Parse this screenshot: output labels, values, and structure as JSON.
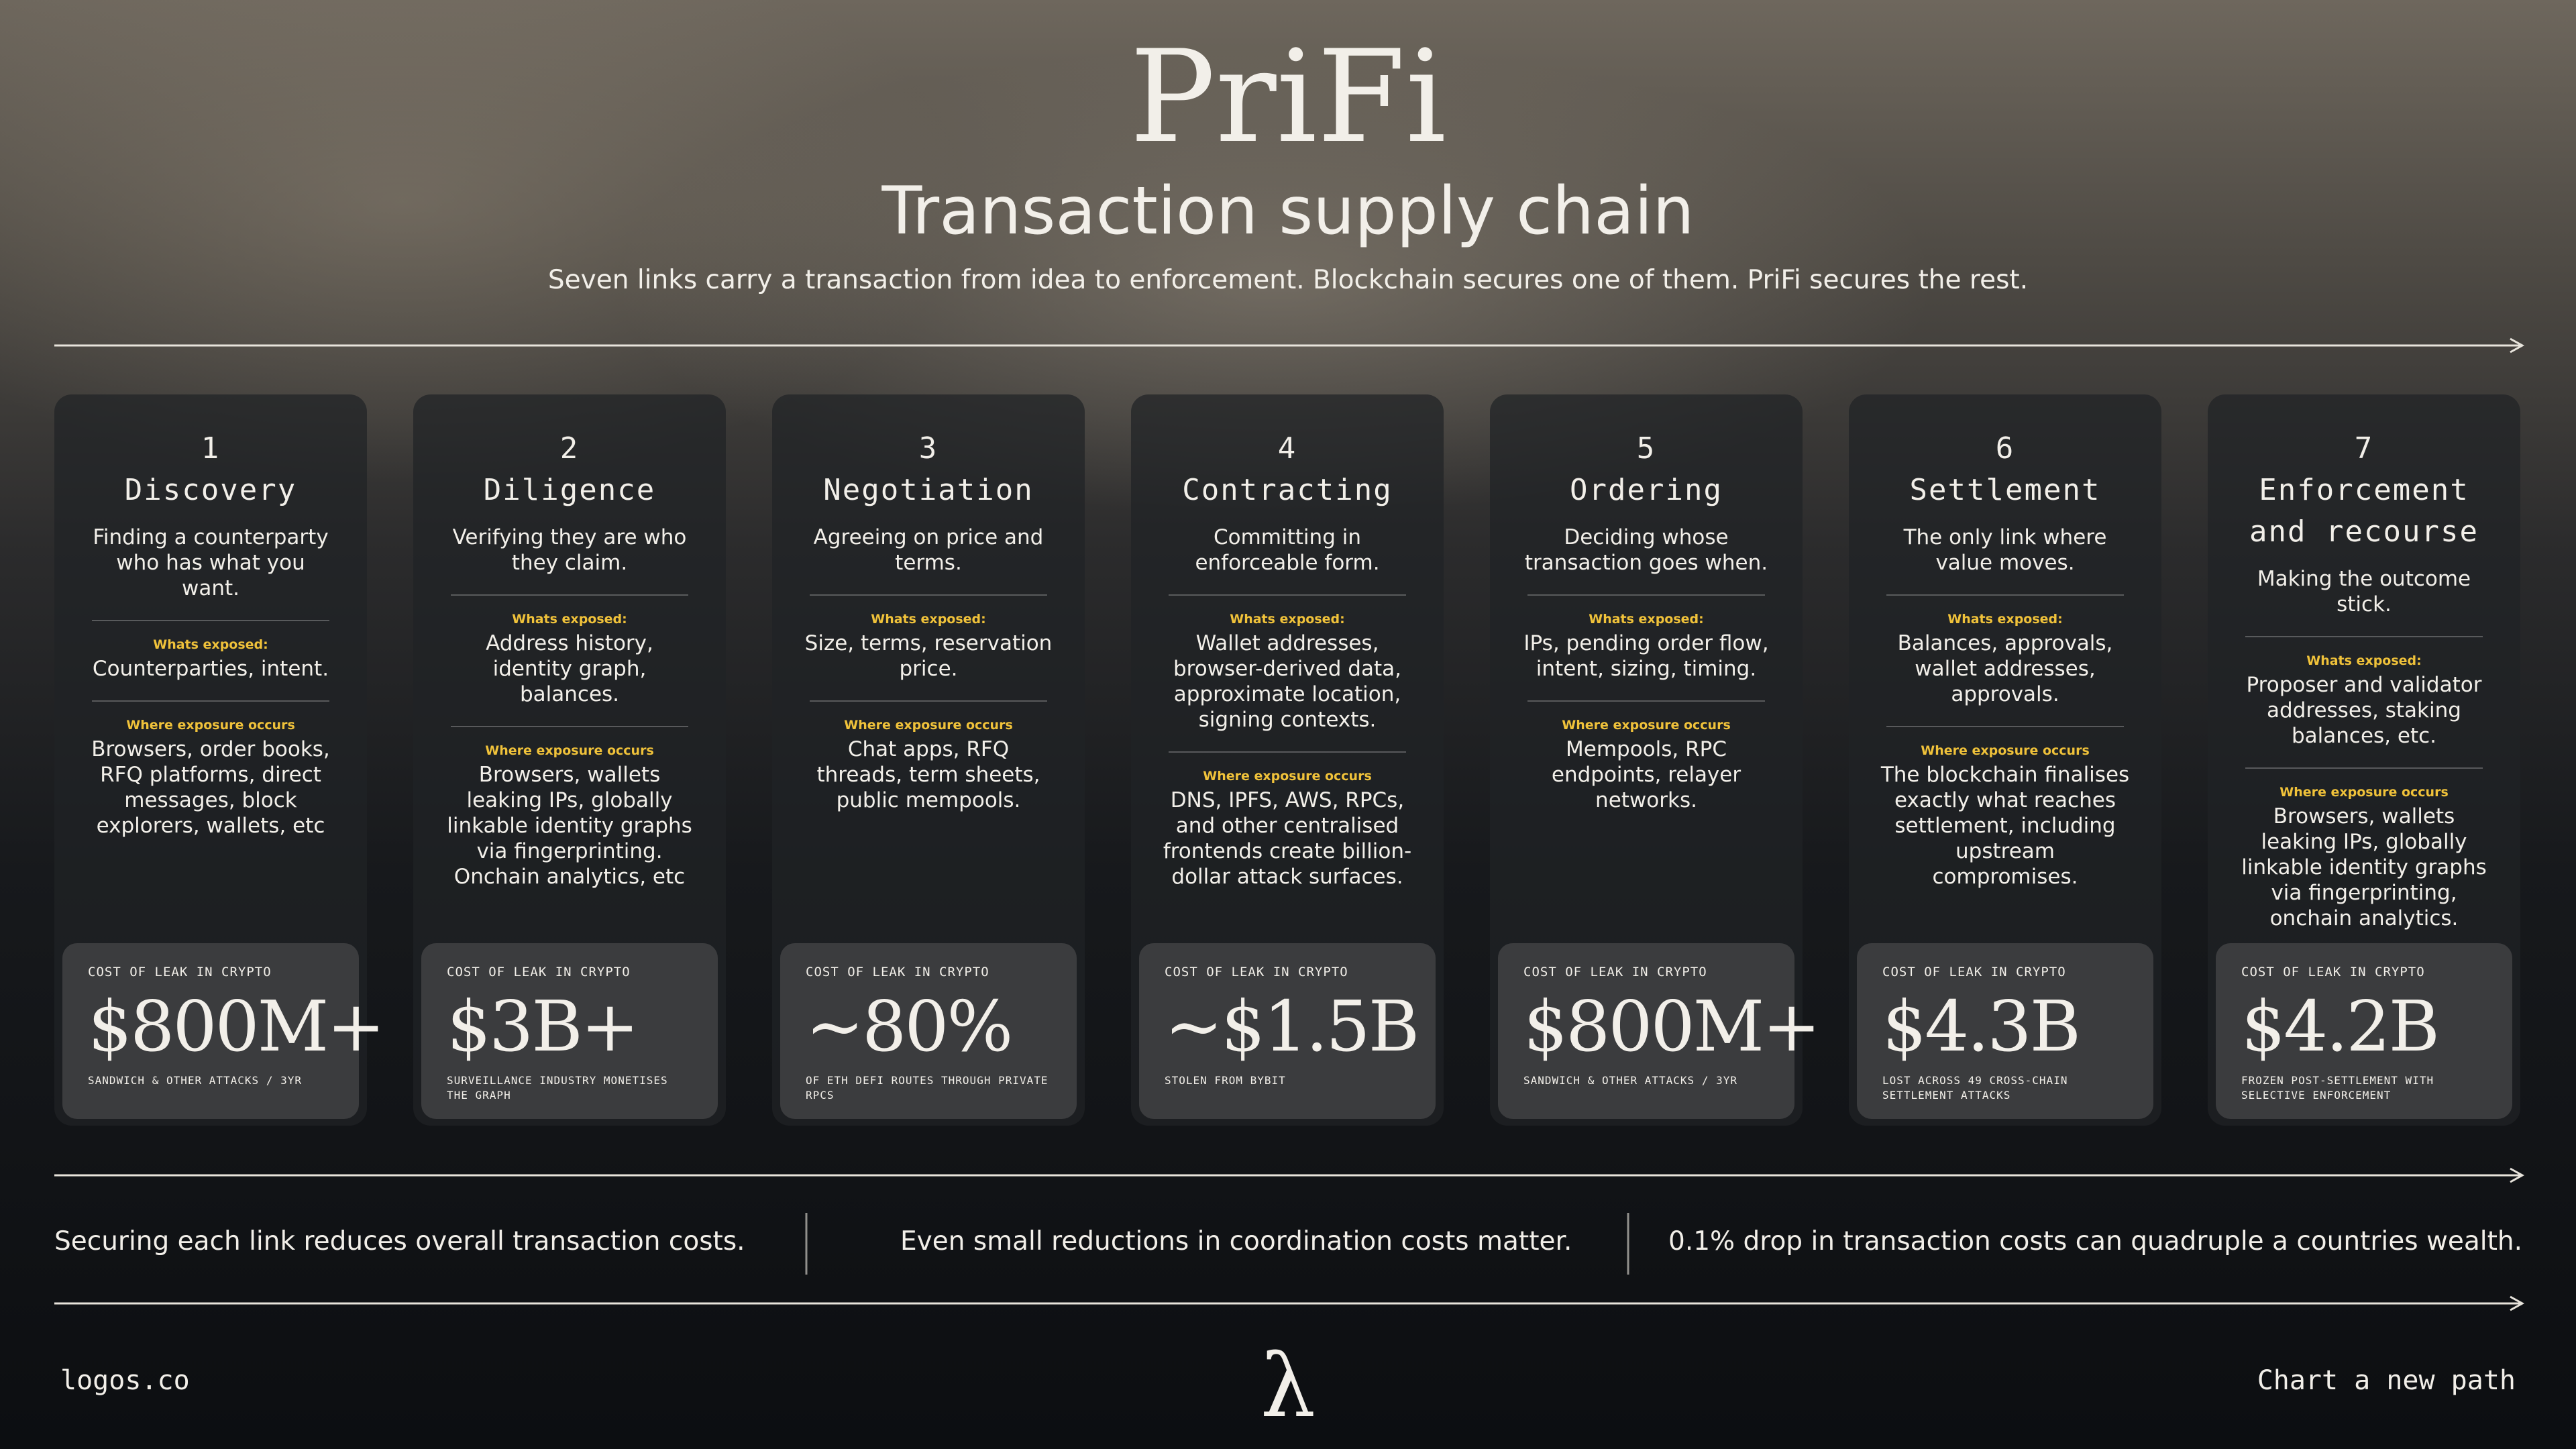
{
  "header": {
    "title": "PriFi",
    "heading": "Transaction supply chain",
    "subtitle": "Seven links carry a transaction from idea to enforcement. Blockchain secures one of them. PriFi secures the rest."
  },
  "cards": [
    {
      "number": "1",
      "title": "Discovery",
      "description": "Finding a counterparty who has what you want.",
      "exposed_label": "Whats exposed:",
      "exposed": "Counterparties, intent.",
      "occurs_label": "Where exposure occurs",
      "occurs": "Browsers, order books, RFQ platforms, direct messages, block explorers, wallets, etc",
      "cost_label": "COST OF LEAK IN CRYPTO",
      "cost": "$800M+",
      "cost_note": "SANDWICH & OTHER ATTACKS / 3YR"
    },
    {
      "number": "2",
      "title": "Diligence",
      "description": "Verifying they are who they claim.",
      "exposed_label": "Whats exposed:",
      "exposed": "Address history, identity graph, balances.",
      "occurs_label": "Where exposure occurs",
      "occurs": "Browsers, wallets leaking IPs, globally linkable identity graphs via fingerprinting. Onchain analytics, etc",
      "cost_label": "COST OF LEAK IN CRYPTO",
      "cost": "$3B+",
      "cost_note": "SURVEILLANCE INDUSTRY MONETISES THE GRAPH"
    },
    {
      "number": "3",
      "title": "Negotiation",
      "description": "Agreeing on price and terms.",
      "exposed_label": "Whats exposed:",
      "exposed": "Size, terms, reservation price.",
      "occurs_label": "Where exposure occurs",
      "occurs": "Chat apps, RFQ threads, term sheets, public mempools.",
      "cost_label": "COST OF LEAK IN CRYPTO",
      "cost": "~80%",
      "cost_note": "OF ETH DEFI ROUTES THROUGH PRIVATE RPCS"
    },
    {
      "number": "4",
      "title": "Contracting",
      "description": "Committing in enforceable form.",
      "exposed_label": "Whats exposed:",
      "exposed": "Wallet addresses, browser-derived data, approximate location, signing contexts.",
      "occurs_label": "Where exposure occurs",
      "occurs": "DNS, IPFS, AWS, RPCs, and other centralised frontends create billion-dollar attack surfaces.",
      "cost_label": "COST OF LEAK IN CRYPTO",
      "cost": "~$1.5B",
      "cost_note": "STOLEN FROM BYBIT"
    },
    {
      "number": "5",
      "title": "Ordering",
      "description": "Deciding whose transaction goes when.",
      "exposed_label": "Whats exposed:",
      "exposed": "IPs, pending order flow, intent, sizing, timing.",
      "occurs_label": "Where exposure occurs",
      "occurs": "Mempools, RPC endpoints, relayer networks.",
      "cost_label": "COST OF LEAK IN CRYPTO",
      "cost": "$800M+",
      "cost_note": "SANDWICH & OTHER ATTACKS / 3YR"
    },
    {
      "number": "6",
      "title": "Settlement",
      "description": "The only link where value moves.",
      "exposed_label": "Whats exposed:",
      "exposed": "Balances, approvals, wallet addresses, approvals.",
      "occurs_label": "Where exposure occurs",
      "occurs": "The blockchain finalises exactly what reaches settlement, including upstream compromises.",
      "cost_label": "COST OF LEAK IN CRYPTO",
      "cost": "$4.3B",
      "cost_note": "LOST ACROSS 49 CROSS-CHAIN SETTLEMENT ATTACKS"
    },
    {
      "number": "7",
      "title": "Enforcement and recourse",
      "description": "Making the outcome stick.",
      "exposed_label": "Whats exposed:",
      "exposed": "Proposer and validator addresses, staking balances, etc.",
      "occurs_label": "Where exposure occurs",
      "occurs": "Browsers, wallets leaking IPs, globally linkable identity graphs via fingerprinting, onchain analytics.",
      "cost_label": "COST OF LEAK IN CRYPTO",
      "cost": "$4.2B",
      "cost_note": "FROZEN POST-SETTLEMENT WITH SELECTIVE ENFORCEMENT"
    }
  ],
  "footer": {
    "statements": [
      "Securing each link reduces overall transaction costs.",
      "Even small reductions in coordination costs matter.",
      "0.1% drop in transaction costs can quadruple a countries wealth."
    ],
    "site": "logos.co",
    "logo": "λ",
    "tagline": "Chart a new path"
  }
}
